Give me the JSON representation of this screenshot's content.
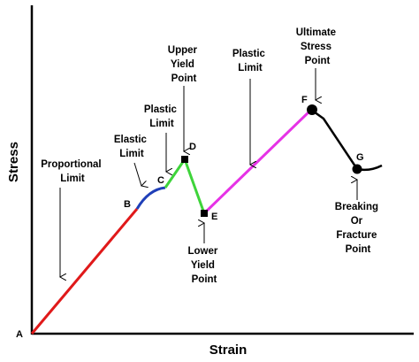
{
  "axes": {
    "x_title": "Strain",
    "y_title": "Stress"
  },
  "points": {
    "A": "A",
    "B": "B",
    "C": "C",
    "D": "D",
    "E": "E",
    "F": "F",
    "G": "G"
  },
  "annotations": {
    "proportional_limit": [
      "Proportional",
      "Limit"
    ],
    "elastic_limit": [
      "Elastic",
      "Limit"
    ],
    "plastic_limit_1": [
      "Plastic",
      "Limit"
    ],
    "upper_yield_point": [
      "Upper",
      "Yield",
      "Point"
    ],
    "plastic_limit_2": [
      "Plastic",
      "Limit"
    ],
    "ultimate_stress_point": [
      "Ultimate",
      "Stress",
      "Point"
    ],
    "lower_yield_point": [
      "Lower",
      "Yield",
      "Point"
    ],
    "breaking_point": [
      "Breaking",
      "Or",
      "Fracture",
      "Point"
    ]
  },
  "segment_colors": {
    "A_B": "#e0191a",
    "B_C": "#1f3fb8",
    "C_D": "#3ed43a",
    "D_E": "#3ed43a",
    "E_F": "#e632e6",
    "F_G": "#000000",
    "axes": "#000000"
  }
}
